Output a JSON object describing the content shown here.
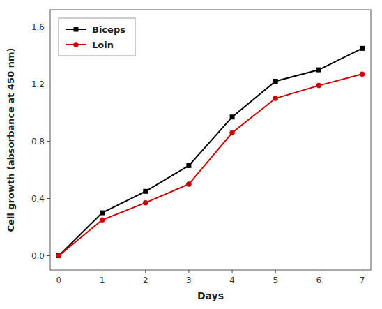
{
  "chart_data": {
    "type": "line",
    "x": [
      0,
      1,
      2,
      3,
      4,
      5,
      6,
      7
    ],
    "series": [
      {
        "name": "Biceps",
        "color": "#000000",
        "marker": "square",
        "values": [
          0.0,
          0.3,
          0.45,
          0.63,
          0.97,
          1.22,
          1.3,
          1.45
        ]
      },
      {
        "name": "Loin",
        "color": "#cc0000",
        "marker": "circle",
        "values": [
          0.0,
          0.25,
          0.37,
          0.5,
          0.86,
          1.1,
          1.19,
          1.27
        ]
      }
    ],
    "xlabel": "Days",
    "ylabel": "Cell growth (absorbance at 450 nm)",
    "xlim": [
      -0.2,
      7.2
    ],
    "ylim": [
      -0.1,
      1.72
    ],
    "xticks": [
      0,
      1,
      2,
      3,
      4,
      5,
      6,
      7
    ],
    "yticks": [
      {
        "value": 0.0,
        "label": "0.0"
      },
      0.4,
      0.8,
      1.2,
      1.6
    ],
    "legend": "upper left"
  }
}
